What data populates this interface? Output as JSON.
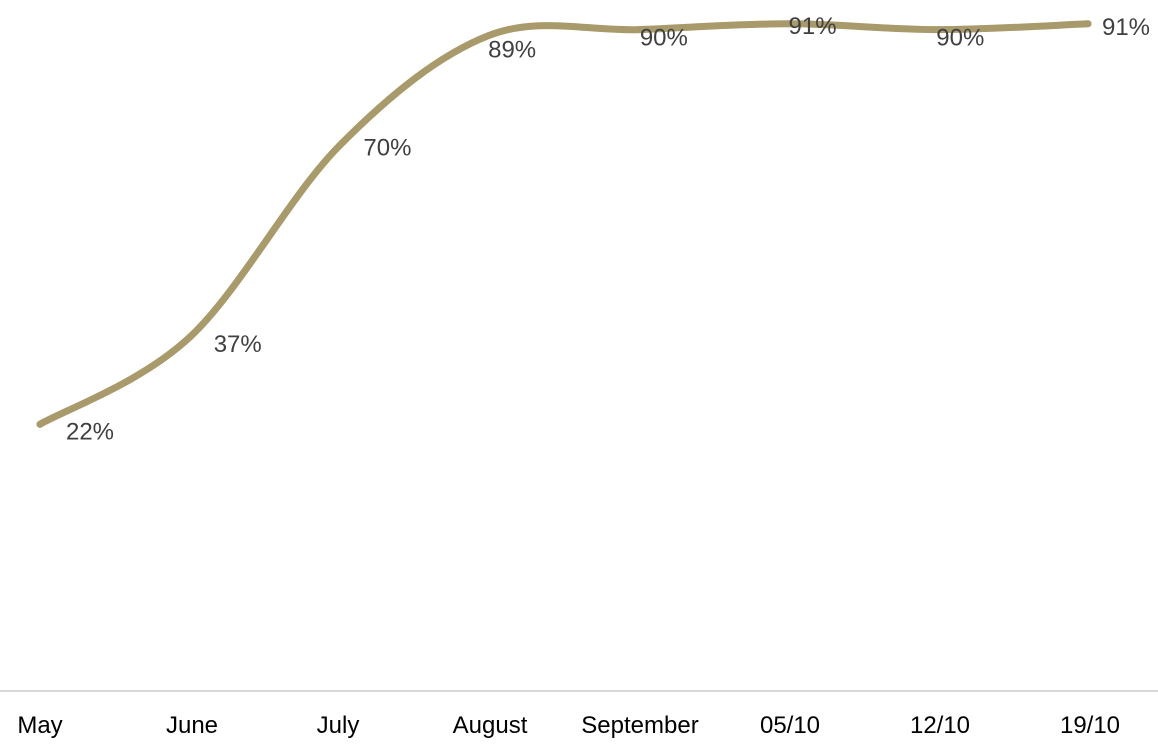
{
  "chart_data": {
    "type": "line",
    "categories": [
      "May",
      "June",
      "July",
      "August",
      "September",
      "05/10",
      "12/10",
      "19/10"
    ],
    "series": [
      {
        "values": [
          22,
          37,
          70,
          89,
          90,
          91,
          90,
          91
        ],
        "data_labels": [
          "22%",
          "37%",
          "70%",
          "89%",
          "90%",
          "91%",
          "90%",
          "91%"
        ]
      }
    ],
    "title": "",
    "xlabel": "",
    "ylabel": "",
    "smooth": true,
    "grid": false,
    "y_axis_visible": false,
    "ylim": [
      0,
      92
    ],
    "colors": {
      "line": "#A89A6B",
      "axis": "#D9D9D9",
      "data_label": "#404040",
      "tick_label": "#000000"
    }
  }
}
